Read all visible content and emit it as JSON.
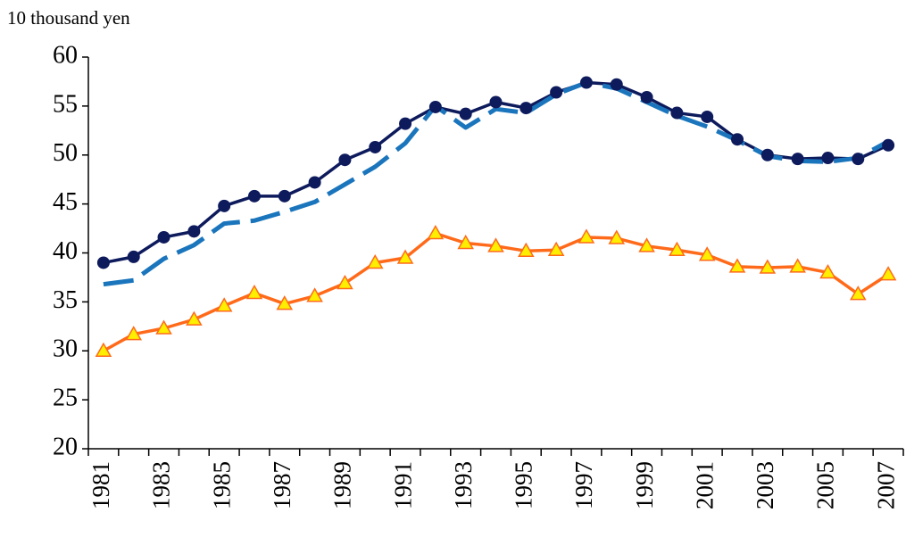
{
  "chart_data": {
    "type": "line",
    "y_label": "10 thousand yen",
    "categories": [
      "1981",
      null,
      "1983",
      null,
      "1985",
      null,
      "1987",
      null,
      "1989",
      null,
      "1991",
      null,
      "1993",
      null,
      "1995",
      null,
      "1997",
      null,
      "1999",
      null,
      "2001",
      null,
      "2003",
      null,
      "2005",
      null,
      "2007"
    ],
    "series": [
      {
        "color": "#0d1a5c",
        "marker": "circle",
        "dashed": false,
        "values": [
          39.0,
          39.6,
          41.6,
          42.2,
          44.8,
          45.8,
          45.8,
          47.2,
          49.5,
          50.8,
          53.2,
          54.9,
          54.2,
          55.4,
          54.8,
          56.4,
          57.4,
          57.2,
          55.9,
          54.3,
          53.9,
          51.6,
          50.0,
          49.6,
          49.7,
          49.6,
          51.0
        ]
      },
      {
        "color": "#1a75bc",
        "marker": null,
        "dashed": true,
        "values": [
          36.8,
          37.2,
          39.4,
          40.8,
          43.0,
          43.3,
          44.2,
          45.2,
          47.0,
          48.8,
          51.2,
          55.0,
          52.8,
          54.7,
          54.3,
          56.2,
          57.4,
          56.8,
          55.4,
          54.0,
          52.9,
          51.5,
          49.9,
          49.4,
          49.3,
          49.7,
          51.4
        ]
      },
      {
        "color": "#ff6a1a",
        "marker": "triangle",
        "marker_fill": "#ffee00",
        "dashed": false,
        "values": [
          30.0,
          31.7,
          32.3,
          33.2,
          34.6,
          35.9,
          34.8,
          35.6,
          36.9,
          39.0,
          39.5,
          42.0,
          41.0,
          40.7,
          40.2,
          40.3,
          41.6,
          41.5,
          40.7,
          40.3,
          39.8,
          38.6,
          38.5,
          38.6,
          38.0,
          35.8,
          37.8
        ]
      }
    ],
    "ylim": [
      20,
      60
    ],
    "yticks": [
      20,
      25,
      30,
      35,
      40,
      45,
      50,
      55,
      60
    ],
    "grid": false
  }
}
